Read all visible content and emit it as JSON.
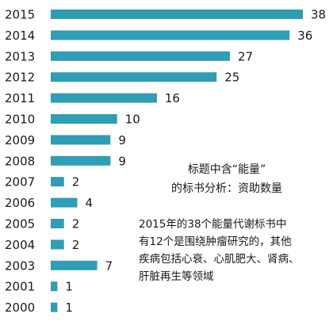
{
  "chart_data": {
    "type": "bar",
    "orientation": "horizontal",
    "categories": [
      "2015",
      "2014",
      "2013",
      "2012",
      "2011",
      "2010",
      "2009",
      "2008",
      "2007",
      "2006",
      "2005",
      "2004",
      "2003",
      "2001",
      "2000"
    ],
    "values": [
      38,
      36,
      27,
      25,
      16,
      10,
      9,
      9,
      2,
      4,
      2,
      2,
      7,
      1,
      1
    ],
    "xlim": [
      0,
      38
    ],
    "grid": false,
    "legend": "none",
    "bar_color": "#2f9db4",
    "data_labels": true
  },
  "annotations": {
    "box1": [
      "标题中含“能量”",
      "的标书分析：资助数量"
    ],
    "box2": [
      "2015年的38个能量代谢标书中",
      "有12个是围绕肿瘤研究的，其他",
      "疾病包括心衰、心肌肥大、肾病、",
      "肝脏再生等领域"
    ]
  }
}
